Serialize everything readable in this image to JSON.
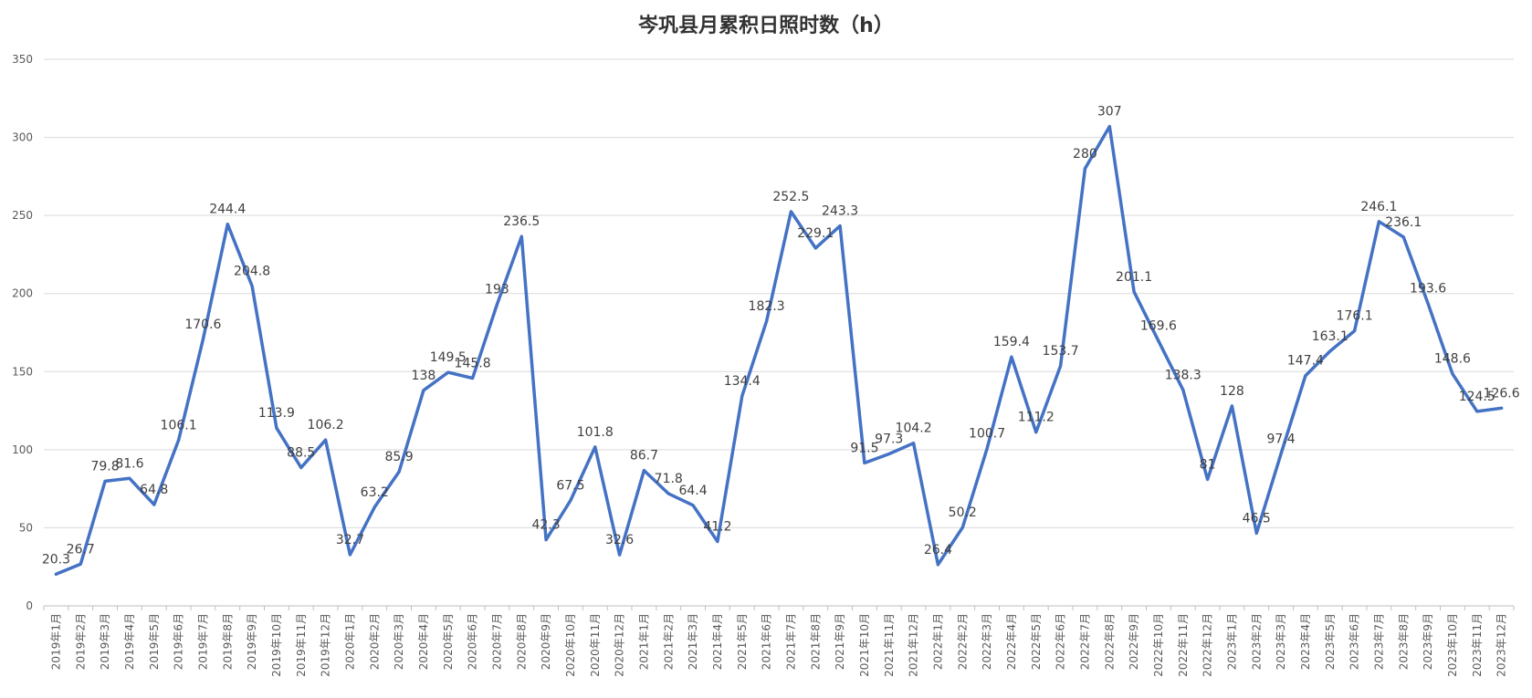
{
  "chart_data": {
    "type": "line",
    "title": "岑巩县月累积日照时数（h）",
    "xlabel": "",
    "ylabel": "",
    "ylim": [
      0,
      350
    ],
    "yticks": [
      0,
      50,
      100,
      150,
      200,
      250,
      300,
      350
    ],
    "grid": true,
    "legend": "none",
    "color": "#4472C4",
    "categories": [
      "2019年1月",
      "2019年2月",
      "2019年3月",
      "2019年4月",
      "2019年5月",
      "2019年6月",
      "2019年7月",
      "2019年8月",
      "2019年9月",
      "2019年10月",
      "2019年11月",
      "2019年12月",
      "2020年1月",
      "2020年2月",
      "2020年3月",
      "2020年4月",
      "2020年5月",
      "2020年6月",
      "2020年7月",
      "2020年8月",
      "2020年9月",
      "2020年10月",
      "2020年11月",
      "2020年12月",
      "2021年1月",
      "2021年2月",
      "2021年3月",
      "2021年4月",
      "2021年5月",
      "2021年6月",
      "2021年7月",
      "2021年8月",
      "2021年9月",
      "2021年10月",
      "2021年11月",
      "2021年12月",
      "2022年1月",
      "2022年2月",
      "2022年3月",
      "2022年4月",
      "2022年5月",
      "2022年6月",
      "2022年7月",
      "2022年8月",
      "2022年9月",
      "2022年10月",
      "2022年11月",
      "2022年12月",
      "2023年1月",
      "2023年2月",
      "2023年3月",
      "2023年4月",
      "2023年5月",
      "2023年6月",
      "2023年7月",
      "2023年8月",
      "2023年9月",
      "2023年10月",
      "2023年11月",
      "2023年12月"
    ],
    "values": [
      20.3,
      26.7,
      79.8,
      81.6,
      64.8,
      106.1,
      170.6,
      244.4,
      204.8,
      113.9,
      88.5,
      106.2,
      32.7,
      63.2,
      85.9,
      138,
      149.5,
      145.8,
      193,
      236.5,
      42.3,
      67.5,
      101.8,
      32.6,
      86.7,
      71.8,
      64.4,
      41.2,
      134.4,
      182.3,
      252.5,
      229.1,
      243.3,
      91.5,
      97.3,
      104.2,
      26.4,
      50.2,
      100.7,
      159.4,
      111.2,
      153.7,
      280,
      307,
      201.1,
      169.6,
      138.3,
      81,
      128,
      46.5,
      97.4,
      147.4,
      163.1,
      176.1,
      246.1,
      236.1,
      193.6,
      148.6,
      124.5,
      126.6
    ]
  }
}
